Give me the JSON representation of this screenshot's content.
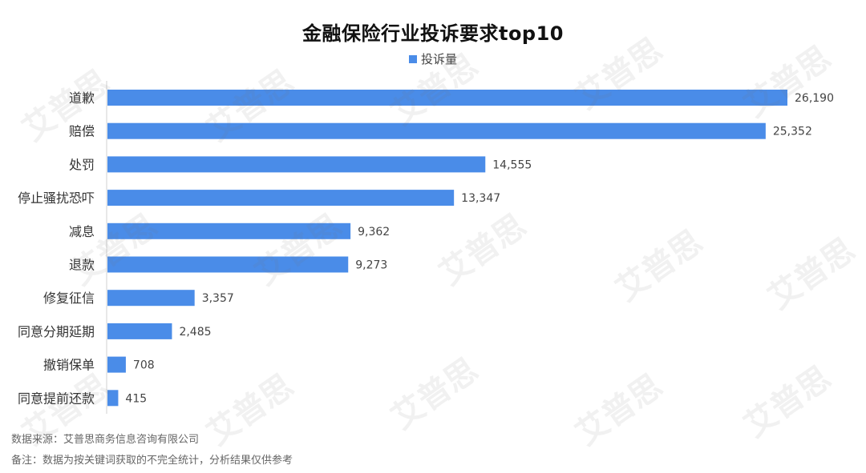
{
  "chart_data": {
    "type": "bar",
    "orientation": "horizontal",
    "title": "金融保险行业投诉要求top10",
    "categories": [
      "道歉",
      "赔偿",
      "处罚",
      "停止骚扰恐吓",
      "减息",
      "退款",
      "修复征信",
      "同意分期延期",
      "撤销保单",
      "同意提前还款"
    ],
    "series": [
      {
        "name": "投诉量",
        "values": [
          26190,
          25352,
          14555,
          13347,
          9362,
          9273,
          3357,
          2485,
          708,
          415
        ],
        "value_labels": [
          "26,190",
          "25,352",
          "14,555",
          "13,347",
          "9,362",
          "9,273",
          "3,357",
          "2,485",
          "708",
          "415"
        ],
        "color": "#4a8ce8"
      }
    ],
    "xlim": [
      0,
      26190
    ],
    "grid": false,
    "legend_position": "top-center"
  },
  "footer": {
    "source": "数据来源：艾普思商务信息咨询有限公司",
    "note": "备注：数据为按关键词获取的不完全统计，分析结果仅供参考"
  },
  "watermark_text": "艾普思"
}
